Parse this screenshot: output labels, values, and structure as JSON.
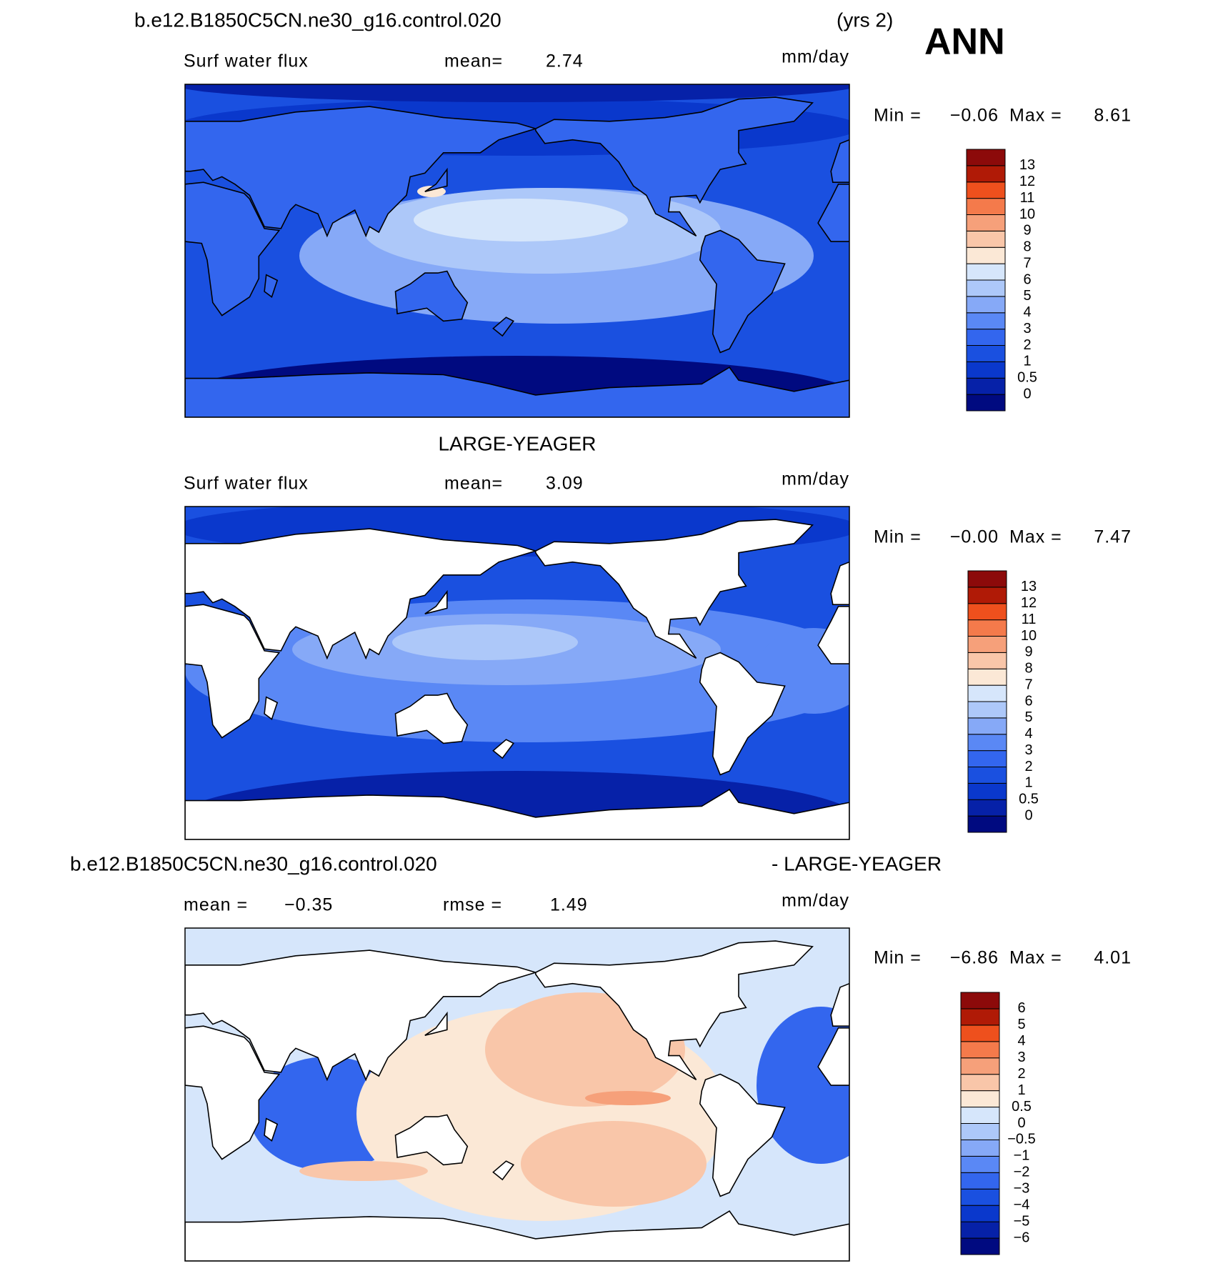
{
  "header": {
    "case": "b.e12.B1850C5CN.ne30_g16.control.020",
    "years": "(yrs 2)",
    "season": "ANN"
  },
  "panels": [
    {
      "variable": "Surf water flux",
      "stat1_label": "mean=",
      "stat1": "2.74",
      "units": "mm/day",
      "min_label": "Min =",
      "min": "−0.06",
      "max_label": "Max =",
      "max": "8.61",
      "colorbar": {
        "colors": [
          "#000a80",
          "#0621a8",
          "#0a38cc",
          "#1a50e0",
          "#3366ee",
          "#5a88f5",
          "#86a9f7",
          "#adc8f9",
          "#d6e6fb",
          "#fbe8d6",
          "#f9c6a9",
          "#f6a07a",
          "#f47a4b",
          "#ee501d",
          "#b01a06",
          "#8c0a0a"
        ],
        "labels": [
          "0",
          "0.5",
          "1",
          "2",
          "3",
          "4",
          "5",
          "6",
          "7",
          "8",
          "9",
          "10",
          "11",
          "12",
          "13"
        ]
      }
    },
    {
      "title": "LARGE-YEAGER",
      "variable": "Surf water flux",
      "stat1_label": "mean=",
      "stat1": "3.09",
      "units": "mm/day",
      "min_label": "Min =",
      "min": "−0.00",
      "max_label": "Max =",
      "max": "7.47",
      "colorbar": {
        "colors": [
          "#000a80",
          "#0621a8",
          "#0a38cc",
          "#1a50e0",
          "#3366ee",
          "#5a88f5",
          "#86a9f7",
          "#adc8f9",
          "#d6e6fb",
          "#fbe8d6",
          "#f9c6a9",
          "#f6a07a",
          "#f47a4b",
          "#ee501d",
          "#b01a06",
          "#8c0a0a"
        ],
        "labels": [
          "0",
          "0.5",
          "1",
          "2",
          "3",
          "4",
          "5",
          "6",
          "7",
          "8",
          "9",
          "10",
          "11",
          "12",
          "13"
        ]
      }
    },
    {
      "title_left": "b.e12.B1850C5CN.ne30_g16.control.020",
      "title_right": "- LARGE-YEAGER",
      "stat1_label": "mean =",
      "stat1": "−0.35",
      "stat2_label": "rmse =",
      "stat2": "1.49",
      "units": "mm/day",
      "min_label": "Min =",
      "min": "−6.86",
      "max_label": "Max =",
      "max": "4.01",
      "colorbar": {
        "colors": [
          "#000a80",
          "#0621a8",
          "#0a38cc",
          "#1a50e0",
          "#3366ee",
          "#5a88f5",
          "#86a9f7",
          "#adc8f9",
          "#d6e6fb",
          "#fbe8d6",
          "#f9c6a9",
          "#f6a07a",
          "#f47a4b",
          "#ee501d",
          "#b01a06",
          "#8c0a0a"
        ],
        "labels": [
          "−6",
          "−5",
          "−4",
          "−3",
          "−2",
          "−1",
          "−0.5",
          "0",
          "0.5",
          "1",
          "2",
          "3",
          "4",
          "5",
          "6"
        ]
      }
    }
  ]
}
